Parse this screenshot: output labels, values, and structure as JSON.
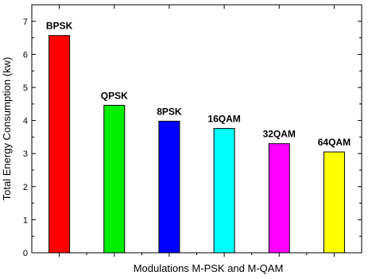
{
  "chart_data": {
    "type": "bar",
    "categories": [
      "BPSK",
      "QPSK",
      "8PSK",
      "16QAM",
      "32QAM",
      "64QAM"
    ],
    "values": [
      6.57,
      4.46,
      3.98,
      3.76,
      3.3,
      3.05
    ],
    "colors": [
      "#ff0000",
      "#00ee00",
      "#0000ff",
      "#00ffff",
      "#ff00ff",
      "#ffff00"
    ],
    "xlabel": "Modulations M-PSK and M-QAM",
    "ylabel": "Total Energy Consumption (kw)",
    "ylim": [
      0,
      7.5
    ],
    "yticks": [
      0,
      1,
      2,
      3,
      4,
      5,
      6,
      7
    ],
    "grid": false,
    "legend": false
  }
}
